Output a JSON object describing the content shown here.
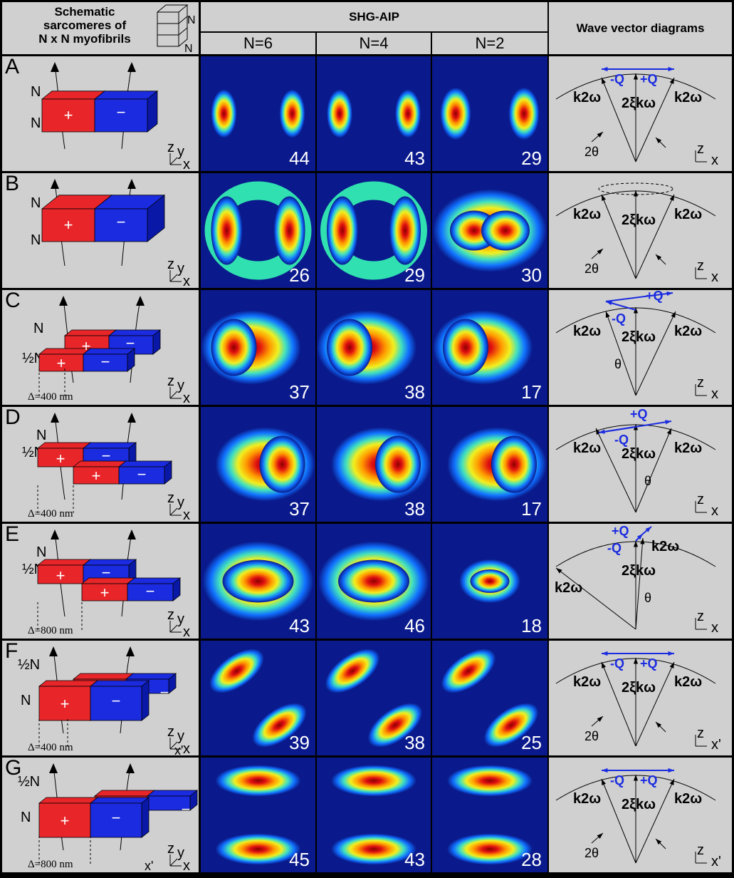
{
  "header": {
    "schematic": "Schematic sarcomeres of N x N myofibrils",
    "schematic_line1": "Schematic",
    "schematic_line2": "sarcomeres of",
    "schematic_line3": "N x N myofibrils",
    "cube_label": "N",
    "shg": "SHG-AIP",
    "n_cols": [
      "N=6",
      "N=4",
      "N=2"
    ],
    "wave": "Wave vector diagrams"
  },
  "rows": [
    {
      "letter": "A",
      "delta": "",
      "values": [
        "44",
        "43",
        "29"
      ],
      "axes": "z y x"
    },
    {
      "letter": "B",
      "delta": "",
      "values": [
        "26",
        "29",
        "30"
      ],
      "axes": "z y x"
    },
    {
      "letter": "C",
      "delta": "Δ=400 nm",
      "values": [
        "37",
        "38",
        "17"
      ],
      "axes": "z y x"
    },
    {
      "letter": "D",
      "delta": "Δ=400 nm",
      "values": [
        "37",
        "38",
        "17"
      ],
      "axes": "z y x"
    },
    {
      "letter": "E",
      "delta": "Δ=800 nm",
      "values": [
        "43",
        "46",
        "18"
      ],
      "axes": "z y x"
    },
    {
      "letter": "F",
      "delta": "Δ=400 nm",
      "values": [
        "39",
        "38",
        "25"
      ],
      "axes": "z y x x'"
    },
    {
      "letter": "G",
      "delta": "Δ=800 nm",
      "values": [
        "45",
        "43",
        "28"
      ],
      "axes": "x' z y x"
    }
  ],
  "labels": {
    "plus": "+",
    "minus": "−",
    "N": "N",
    "half_N": "½N",
    "k2w": "k2ω",
    "kw": "2ξkω",
    "plusQ": "+Q",
    "minusQ": "-Q",
    "two_theta": "2θ",
    "theta": "θ",
    "z": "z",
    "x": "x",
    "xp": "x'",
    "y": "y"
  },
  "colors": {
    "red": "#e8262a",
    "blue": "#1a2be0",
    "plot_bg": "#0a1a8c",
    "panel_bg": "#d0d0d0",
    "q_blue": "#1a2be0"
  }
}
